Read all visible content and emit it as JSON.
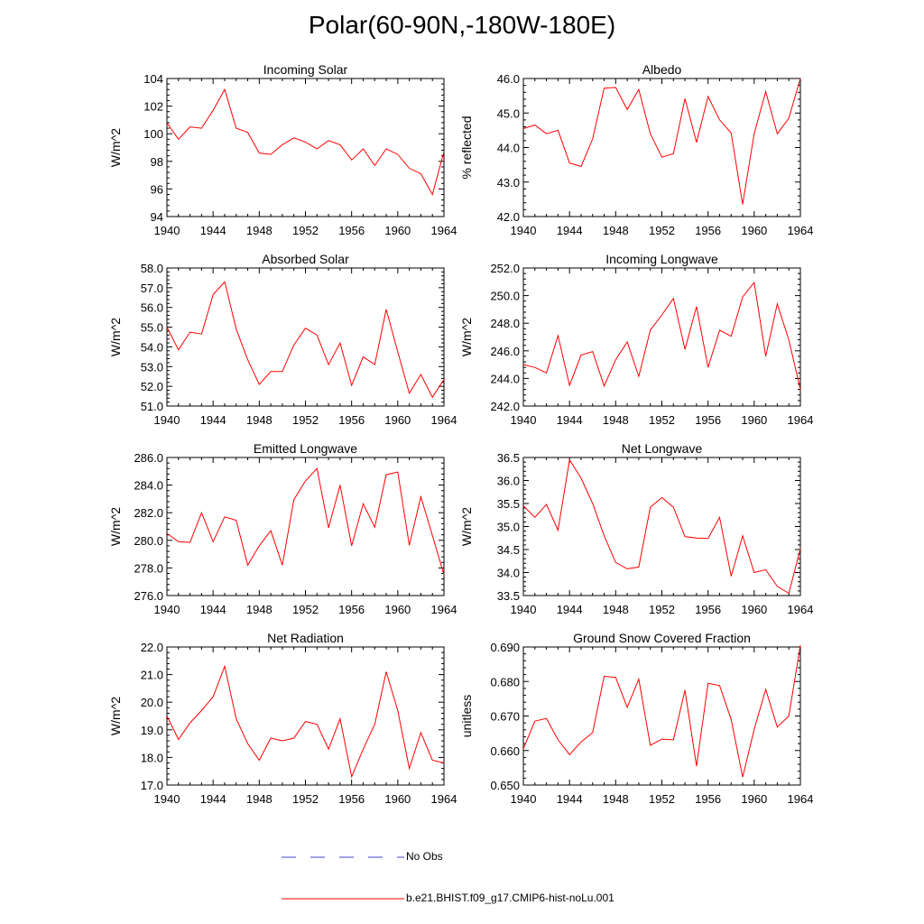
{
  "title": "Polar(60-90N,-180W-180E)",
  "colors": {
    "line": "#ff0000",
    "obs": "#4040cc",
    "axis": "#000000"
  },
  "legend": [
    {
      "label": "No Obs",
      "style": "dashed",
      "color": "#4040cc"
    },
    {
      "label": "b.e21.BHIST.f09_g17.CMIP6-hist-noLu.001",
      "style": "solid",
      "color": "#ff0000"
    }
  ],
  "chart_data": [
    {
      "type": "line",
      "title": "Incoming Solar",
      "ylabel": "W/m^2",
      "xlabel": "",
      "xlim": [
        1940,
        1964
      ],
      "ylim": [
        94,
        104
      ],
      "xticks": [
        "1940",
        "1944",
        "1948",
        "1952",
        "1956",
        "1960",
        "1964"
      ],
      "yticks": [
        "94",
        "96",
        "98",
        "100",
        "102",
        "104"
      ],
      "x": [
        1940,
        1941,
        1942,
        1943,
        1944,
        1945,
        1946,
        1947,
        1948,
        1949,
        1950,
        1951,
        1952,
        1953,
        1954,
        1955,
        1956,
        1957,
        1958,
        1959,
        1960,
        1961,
        1962,
        1963,
        1964
      ],
      "values": [
        100.8,
        99.6,
        100.5,
        100.4,
        101.7,
        103.2,
        100.4,
        100.1,
        98.6,
        98.5,
        99.2,
        99.7,
        99.4,
        98.9,
        99.5,
        99.2,
        98.1,
        98.9,
        97.7,
        98.9,
        98.5,
        97.5,
        97.1,
        95.6,
        98.7
      ]
    },
    {
      "type": "line",
      "title": "Albedo",
      "ylabel": "% reflected",
      "xlabel": "",
      "xlim": [
        1940,
        1964
      ],
      "ylim": [
        42.0,
        46.0
      ],
      "xticks": [
        "1940",
        "1944",
        "1948",
        "1952",
        "1956",
        "1960",
        "1964"
      ],
      "yticks": [
        "42.0",
        "43.0",
        "44.0",
        "45.0",
        "46.0"
      ],
      "x": [
        1940,
        1941,
        1942,
        1943,
        1944,
        1945,
        1946,
        1947,
        1948,
        1949,
        1950,
        1951,
        1952,
        1953,
        1954,
        1955,
        1956,
        1957,
        1958,
        1959,
        1960,
        1961,
        1962,
        1963,
        1964
      ],
      "values": [
        44.55,
        44.65,
        44.4,
        44.5,
        43.55,
        43.45,
        44.25,
        45.72,
        45.74,
        45.1,
        45.68,
        44.4,
        43.72,
        43.82,
        45.42,
        44.15,
        45.48,
        44.8,
        44.42,
        42.35,
        44.4,
        45.62,
        44.4,
        44.85,
        46.0
      ]
    },
    {
      "type": "line",
      "title": "Absorbed Solar",
      "ylabel": "W/m^2",
      "xlabel": "",
      "xlim": [
        1940,
        1964
      ],
      "ylim": [
        51.0,
        58.0
      ],
      "xticks": [
        "1940",
        "1944",
        "1948",
        "1952",
        "1956",
        "1960",
        "1964"
      ],
      "yticks": [
        "51.0",
        "52.0",
        "53.0",
        "54.0",
        "55.0",
        "56.0",
        "57.0",
        "58.0"
      ],
      "x": [
        1940,
        1941,
        1942,
        1943,
        1944,
        1945,
        1946,
        1947,
        1948,
        1949,
        1950,
        1951,
        1952,
        1953,
        1954,
        1955,
        1956,
        1957,
        1958,
        1959,
        1960,
        1961,
        1962,
        1963,
        1964
      ],
      "values": [
        55.0,
        53.85,
        54.75,
        54.65,
        56.65,
        57.3,
        54.9,
        53.35,
        52.1,
        52.75,
        52.75,
        54.1,
        54.95,
        54.6,
        53.1,
        54.2,
        52.05,
        53.5,
        53.1,
        55.9,
        53.75,
        51.65,
        52.6,
        51.45,
        52.35
      ]
    },
    {
      "type": "line",
      "title": "Incoming Longwave",
      "ylabel": "W/m^2",
      "xlabel": "",
      "xlim": [
        1940,
        1964
      ],
      "ylim": [
        242.0,
        252.0
      ],
      "xticks": [
        "1940",
        "1944",
        "1948",
        "1952",
        "1956",
        "1960",
        "1964"
      ],
      "yticks": [
        "242.0",
        "244.0",
        "246.0",
        "248.0",
        "250.0",
        "252.0"
      ],
      "x": [
        1940,
        1941,
        1942,
        1943,
        1944,
        1945,
        1946,
        1947,
        1948,
        1949,
        1950,
        1951,
        1952,
        1953,
        1954,
        1955,
        1956,
        1957,
        1958,
        1959,
        1960,
        1961,
        1962,
        1963,
        1964
      ],
      "values": [
        245.0,
        244.8,
        244.4,
        247.1,
        243.5,
        245.7,
        245.95,
        243.45,
        245.35,
        246.65,
        244.15,
        247.5,
        248.6,
        249.8,
        246.1,
        249.2,
        244.8,
        247.5,
        247.05,
        249.9,
        250.95,
        245.6,
        249.4,
        246.8,
        243.2
      ]
    },
    {
      "type": "line",
      "title": "Emitted Longwave",
      "ylabel": "W/m^2",
      "xlabel": "",
      "xlim": [
        1940,
        1964
      ],
      "ylim": [
        276.0,
        286.0
      ],
      "xticks": [
        "1940",
        "1944",
        "1948",
        "1952",
        "1956",
        "1960",
        "1964"
      ],
      "yticks": [
        "276.0",
        "278.0",
        "280.0",
        "282.0",
        "284.0",
        "286.0"
      ],
      "x": [
        1940,
        1941,
        1942,
        1943,
        1944,
        1945,
        1946,
        1947,
        1948,
        1949,
        1950,
        1951,
        1952,
        1953,
        1954,
        1955,
        1956,
        1957,
        1958,
        1959,
        1960,
        1961,
        1962,
        1963,
        1964
      ],
      "values": [
        280.5,
        279.9,
        279.85,
        282.0,
        279.9,
        281.7,
        281.45,
        278.2,
        279.6,
        280.7,
        278.2,
        282.95,
        284.3,
        285.2,
        280.9,
        284.0,
        279.6,
        282.65,
        280.95,
        284.75,
        284.95,
        279.65,
        283.15,
        280.35,
        277.5
      ]
    },
    {
      "type": "line",
      "title": "Net Longwave",
      "ylabel": "W/m^2",
      "xlabel": "",
      "xlim": [
        1940,
        1964
      ],
      "ylim": [
        33.5,
        36.5
      ],
      "xticks": [
        "1940",
        "1944",
        "1948",
        "1952",
        "1956",
        "1960",
        "1964"
      ],
      "yticks": [
        "33.5",
        "34.0",
        "34.5",
        "35.0",
        "35.5",
        "36.0",
        "36.5"
      ],
      "x": [
        1940,
        1941,
        1942,
        1943,
        1944,
        1945,
        1946,
        1947,
        1948,
        1949,
        1950,
        1951,
        1952,
        1953,
        1954,
        1955,
        1956,
        1957,
        1958,
        1959,
        1960,
        1961,
        1962,
        1963,
        1964
      ],
      "values": [
        35.45,
        35.2,
        35.48,
        34.92,
        36.45,
        36.05,
        35.5,
        34.8,
        34.22,
        34.08,
        34.12,
        35.42,
        35.63,
        35.42,
        34.78,
        34.75,
        34.74,
        35.2,
        33.92,
        34.8,
        34.0,
        34.06,
        33.7,
        33.55,
        34.52
      ]
    },
    {
      "type": "line",
      "title": "Net Radiation",
      "ylabel": "W/m^2",
      "xlabel": "",
      "xlim": [
        1940,
        1964
      ],
      "ylim": [
        17.0,
        22.0
      ],
      "xticks": [
        "1940",
        "1944",
        "1948",
        "1952",
        "1956",
        "1960",
        "1964"
      ],
      "yticks": [
        "17.0",
        "18.0",
        "19.0",
        "20.0",
        "21.0",
        "22.0"
      ],
      "x": [
        1940,
        1941,
        1942,
        1943,
        1944,
        1945,
        1946,
        1947,
        1948,
        1949,
        1950,
        1951,
        1952,
        1953,
        1954,
        1955,
        1956,
        1957,
        1958,
        1959,
        1960,
        1961,
        1962,
        1963,
        1964
      ],
      "values": [
        19.5,
        18.65,
        19.25,
        19.7,
        20.2,
        21.3,
        19.4,
        18.5,
        17.9,
        18.7,
        18.6,
        18.7,
        19.3,
        19.2,
        18.3,
        19.4,
        17.3,
        18.3,
        19.2,
        21.1,
        19.7,
        17.6,
        18.9,
        17.9,
        17.8
      ]
    },
    {
      "type": "line",
      "title": "Ground Snow Covered Fraction",
      "ylabel": "unitless",
      "xlabel": "",
      "xlim": [
        1940,
        1964
      ],
      "ylim": [
        0.65,
        0.69
      ],
      "xticks": [
        "1940",
        "1944",
        "1948",
        "1952",
        "1956",
        "1960",
        "1964"
      ],
      "yticks": [
        "0.650",
        "0.660",
        "0.670",
        "0.680",
        "0.690"
      ],
      "x": [
        1940,
        1941,
        1942,
        1943,
        1944,
        1945,
        1946,
        1947,
        1948,
        1949,
        1950,
        1951,
        1952,
        1953,
        1954,
        1955,
        1956,
        1957,
        1958,
        1959,
        1960,
        1961,
        1962,
        1963,
        1964
      ],
      "values": [
        0.6605,
        0.6685,
        0.6693,
        0.6631,
        0.6588,
        0.6625,
        0.6652,
        0.6815,
        0.6812,
        0.6725,
        0.6807,
        0.6615,
        0.6633,
        0.6631,
        0.6775,
        0.6555,
        0.6795,
        0.6788,
        0.669,
        0.6523,
        0.6661,
        0.6777,
        0.6668,
        0.67,
        0.6905
      ]
    }
  ]
}
